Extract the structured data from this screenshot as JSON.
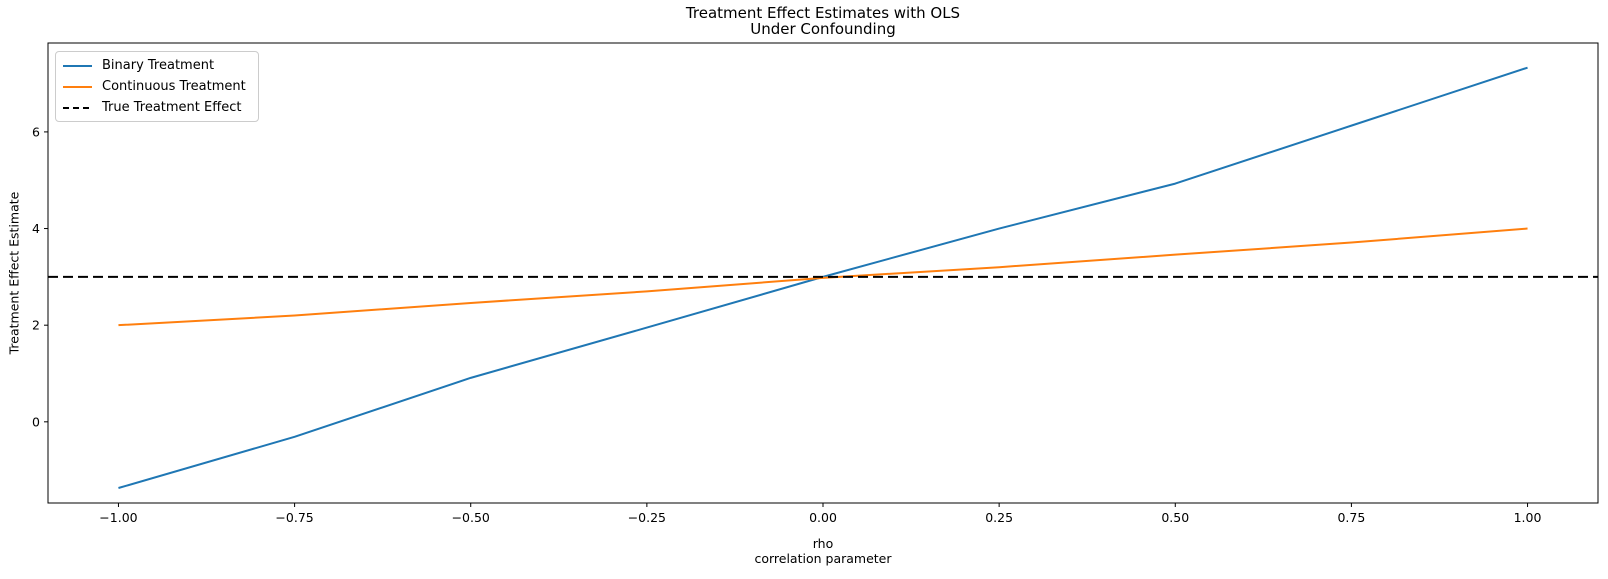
{
  "chart_data": {
    "type": "line",
    "title": "Treatment Effect Estimates with OLS\nUnder Confounding",
    "xlabel": "rho\ncorrelation parameter",
    "ylabel": "Treatment Effect Estimate",
    "xlim": [
      -1.1,
      1.1
    ],
    "ylim": [
      -1.68,
      7.84
    ],
    "grid": false,
    "legend_position": "upper-left",
    "axis_color": "#000000",
    "xticks": [
      -1.0,
      -0.75,
      -0.5,
      -0.25,
      0.0,
      0.25,
      0.5,
      0.75,
      1.0
    ],
    "xtick_labels": [
      "−1.00",
      "−0.75",
      "−0.50",
      "−0.25",
      "0.00",
      "0.25",
      "0.50",
      "0.75",
      "1.00"
    ],
    "yticks": [
      0,
      2,
      4,
      6
    ],
    "ytick_labels": [
      "0",
      "2",
      "4",
      "6"
    ],
    "x": [
      -1.0,
      -0.75,
      -0.5,
      -0.25,
      0.0,
      0.25,
      0.5,
      0.75,
      1.0
    ],
    "series": [
      {
        "name": "Binary Treatment",
        "color": "#1f77b4",
        "style": "solid",
        "values": [
          -1.37,
          -0.31,
          0.91,
          1.95,
          3.0,
          4.0,
          4.93,
          6.13,
          7.33
        ]
      },
      {
        "name": "Continuous Treatment",
        "color": "#ff7f0e",
        "style": "solid",
        "values": [
          2.0,
          2.2,
          2.46,
          2.7,
          2.98,
          3.2,
          3.46,
          3.71,
          4.0
        ]
      },
      {
        "name": "True Treatment Effect",
        "color": "#000000",
        "style": "dashed",
        "constant": 3.0
      }
    ]
  }
}
